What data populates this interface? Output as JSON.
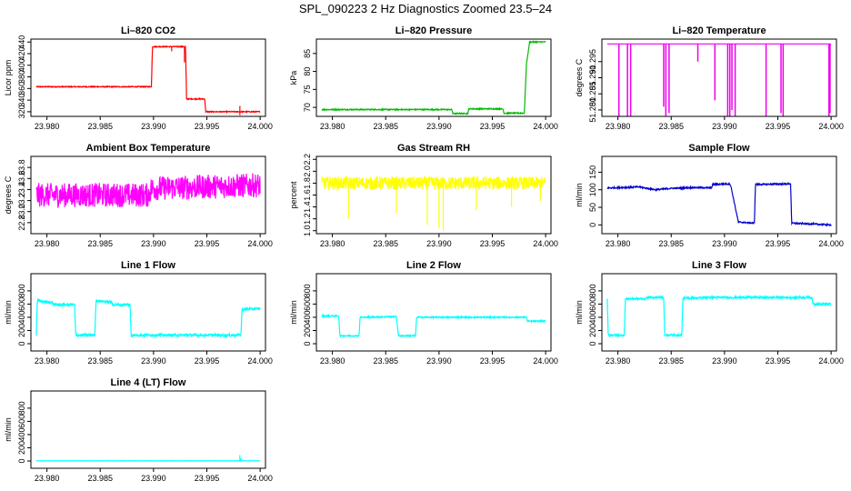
{
  "figure": {
    "title": "SPL_090223  2 Hz Diagnostics Zoomed 23.5–24"
  },
  "chart_data": [
    {
      "type": "line",
      "title": "Li–820 CO2",
      "xlabel": "",
      "ylabel": "Licor ppm",
      "xlim": [
        23.9785,
        24.0005
      ],
      "ylim": [
        312,
        445
      ],
      "xticks": [
        "23.980",
        "23.985",
        "23.990",
        "23.995",
        "24.000"
      ],
      "yticks": [
        "320",
        "340",
        "360",
        "380",
        "400",
        "420",
        "440"
      ],
      "color": "#ff0000",
      "noise": 0.8,
      "steps": [
        [
          23.979,
          363
        ],
        [
          23.9898,
          363
        ],
        [
          23.9899,
          432
        ],
        [
          23.993,
          432
        ],
        [
          23.9931,
          342
        ],
        [
          23.9948,
          342
        ],
        [
          23.9949,
          320
        ],
        [
          24.0,
          320
        ]
      ],
      "spikes": [
        [
          23.9917,
          424
        ],
        [
          23.9929,
          405
        ],
        [
          23.9981,
          330
        ],
        [
          23.9981,
          314
        ]
      ]
    },
    {
      "type": "line",
      "title": "Li–820 Pressure",
      "xlabel": "",
      "ylabel": "kPa",
      "xlim": [
        23.9785,
        24.0005
      ],
      "ylim": [
        67.5,
        89
      ],
      "xticks": [
        "23.980",
        "23.985",
        "23.990",
        "23.995",
        "24.000"
      ],
      "yticks": [
        "70",
        "75",
        "80",
        "85"
      ],
      "color": "#00bb00",
      "noise": 0.15,
      "steps": [
        [
          23.979,
          69.4
        ],
        [
          23.9912,
          69.4
        ],
        [
          23.9913,
          68.3
        ],
        [
          23.9927,
          68.3
        ],
        [
          23.9928,
          69.6
        ],
        [
          23.996,
          69.6
        ],
        [
          23.9961,
          68.4
        ],
        [
          23.998,
          68.4
        ],
        [
          23.9982,
          82
        ],
        [
          23.9985,
          88.2
        ],
        [
          24.0,
          88.2
        ]
      ],
      "spikes": []
    },
    {
      "type": "line",
      "title": "Li–820 Temperature",
      "xlabel": "",
      "ylabel": "degrees C",
      "xlim": [
        23.9785,
        24.0005
      ],
      "ylim": [
        51.278,
        51.302
      ],
      "xticks": [
        "23.980",
        "23.985",
        "23.990",
        "23.995",
        "24.000"
      ],
      "yticks": [
        "51.280",
        "51.285",
        "51.290",
        "51.295"
      ],
      "color": "#ee00ee",
      "noise": 0,
      "steps": [
        [
          23.979,
          51.3005
        ],
        [
          24.0,
          51.3005
        ]
      ],
      "drops": [
        [
          23.9801,
          51.278
        ],
        [
          23.9809,
          51.278
        ],
        [
          23.9812,
          51.278
        ],
        [
          23.9843,
          51.281
        ],
        [
          23.9845,
          51.278
        ],
        [
          23.9848,
          51.279
        ],
        [
          23.9875,
          51.295
        ],
        [
          23.9891,
          51.283
        ],
        [
          23.9903,
          51.278
        ],
        [
          23.9905,
          51.278
        ],
        [
          23.9907,
          51.28
        ],
        [
          23.991,
          51.278
        ],
        [
          23.9939,
          51.278
        ],
        [
          23.9953,
          51.279
        ],
        [
          23.9955,
          51.278
        ],
        [
          23.9998,
          51.278
        ],
        [
          23.9999,
          51.279
        ]
      ]
    },
    {
      "type": "line",
      "title": "Ambient Box Temperature",
      "xlabel": "",
      "ylabel": "degrees C",
      "xlim": [
        23.9785,
        24.0005
      ],
      "ylim": [
        22.6,
        24.0
      ],
      "xticks": [
        "23.980",
        "23.985",
        "23.990",
        "23.995",
        "24.000"
      ],
      "yticks": [
        "22.8",
        "23.0",
        "23.2",
        "23.4",
        "23.6",
        "23.8"
      ],
      "color": "#ff00ff",
      "noise": 0.22,
      "steps": [
        [
          23.979,
          23.3
        ],
        [
          23.9895,
          23.3
        ],
        [
          23.9898,
          23.42
        ],
        [
          24.0,
          23.48
        ]
      ],
      "spikes": []
    },
    {
      "type": "line",
      "title": "Gas Stream RH",
      "xlabel": "",
      "ylabel": "percent",
      "xlim": [
        23.9785,
        24.0005
      ],
      "ylim": [
        0.95,
        2.25
      ],
      "xticks": [
        "23.980",
        "23.985",
        "23.990",
        "23.995",
        "24.000"
      ],
      "yticks": [
        "1.0",
        "1.2",
        "1.4",
        "1.6",
        "1.8",
        "2.0",
        "2.2"
      ],
      "color": "#ffff00",
      "noise": 0.11,
      "steps": [
        [
          23.979,
          1.8
        ],
        [
          24.0,
          1.8
        ]
      ],
      "spikes": [
        [
          23.9815,
          1.2
        ],
        [
          23.9889,
          1.1
        ],
        [
          23.99,
          1.05
        ],
        [
          23.9904,
          1.0
        ],
        [
          23.986,
          1.3
        ],
        [
          23.9935,
          1.35
        ],
        [
          23.9968,
          1.4
        ],
        [
          23.9995,
          1.5
        ]
      ]
    },
    {
      "type": "line",
      "title": "Sample Flow",
      "xlabel": "",
      "ylabel": "ml/min",
      "xlim": [
        23.9785,
        24.0005
      ],
      "ylim": [
        -25,
        195
      ],
      "xticks": [
        "23.980",
        "23.985",
        "23.990",
        "23.995",
        "24.000"
      ],
      "yticks": [
        "0",
        "50",
        "100",
        "150"
      ],
      "color": "#0000cc",
      "noise": 2,
      "steps": [
        [
          23.979,
          105
        ],
        [
          23.982,
          108
        ],
        [
          23.9835,
          100
        ],
        [
          23.985,
          104
        ],
        [
          23.987,
          106
        ],
        [
          23.9888,
          106
        ],
        [
          23.9889,
          115
        ],
        [
          23.9905,
          117
        ],
        [
          23.9906,
          110
        ],
        [
          23.9913,
          8
        ],
        [
          23.9928,
          5
        ],
        [
          23.9929,
          115
        ],
        [
          23.9962,
          117
        ],
        [
          23.9963,
          5
        ],
        [
          24.0,
          0
        ]
      ],
      "spikes": []
    },
    {
      "type": "line",
      "title": "Line 1 Flow",
      "xlabel": "",
      "ylabel": "ml/min",
      "xlim": [
        23.9785,
        24.0005
      ],
      "ylim": [
        -110,
        1060
      ],
      "xticks": [
        "23.980",
        "23.985",
        "23.990",
        "23.995",
        "24.000"
      ],
      "yticks": [
        "0",
        "200",
        "400",
        "600",
        "800"
      ],
      "color": "#00ffff",
      "noise": 20,
      "steps": [
        [
          23.979,
          130
        ],
        [
          23.9791,
          650
        ],
        [
          23.9805,
          620
        ],
        [
          23.9807,
          590
        ],
        [
          23.9826,
          590
        ],
        [
          23.9827,
          130
        ],
        [
          23.9845,
          130
        ],
        [
          23.9846,
          650
        ],
        [
          23.986,
          630
        ],
        [
          23.9862,
          590
        ],
        [
          23.9878,
          590
        ],
        [
          23.9879,
          130
        ],
        [
          23.9982,
          130
        ],
        [
          23.9983,
          520
        ],
        [
          24.0,
          530
        ]
      ],
      "spikes": []
    },
    {
      "type": "line",
      "title": "Line 2 Flow",
      "xlabel": "",
      "ylabel": "ml/min",
      "xlim": [
        23.9785,
        24.0005
      ],
      "ylim": [
        -110,
        1060
      ],
      "xticks": [
        "23.980",
        "23.985",
        "23.990",
        "23.995",
        "24.000"
      ],
      "yticks": [
        "0",
        "200",
        "400",
        "600",
        "800"
      ],
      "color": "#00ffff",
      "noise": 10,
      "steps": [
        [
          23.979,
          420
        ],
        [
          23.9806,
          420
        ],
        [
          23.9807,
          120
        ],
        [
          23.9825,
          120
        ],
        [
          23.9826,
          400
        ],
        [
          23.986,
          410
        ],
        [
          23.9862,
          120
        ],
        [
          23.9878,
          120
        ],
        [
          23.9879,
          400
        ],
        [
          23.9982,
          400
        ],
        [
          23.9983,
          340
        ],
        [
          24.0,
          340
        ]
      ],
      "spikes": []
    },
    {
      "type": "line",
      "title": "Line 3 Flow",
      "xlabel": "",
      "ylabel": "ml/min",
      "xlim": [
        23.9785,
        24.0005
      ],
      "ylim": [
        -110,
        1060
      ],
      "xticks": [
        "23.980",
        "23.985",
        "23.990",
        "23.995",
        "24.000"
      ],
      "yticks": [
        "0",
        "200",
        "400",
        "600",
        "800"
      ],
      "color": "#00ffff",
      "noise": 15,
      "steps": [
        [
          23.979,
          680
        ],
        [
          23.9791,
          130
        ],
        [
          23.9806,
          130
        ],
        [
          23.9807,
          680
        ],
        [
          23.9826,
          680
        ],
        [
          23.9827,
          700
        ],
        [
          23.9843,
          700
        ],
        [
          23.9844,
          130
        ],
        [
          23.986,
          130
        ],
        [
          23.9861,
          690
        ],
        [
          23.9875,
          690
        ],
        [
          23.988,
          700
        ],
        [
          23.9982,
          700
        ],
        [
          23.9983,
          600
        ],
        [
          24.0,
          600
        ]
      ],
      "spikes": []
    },
    {
      "type": "line",
      "title": "Line 4 (LT) Flow",
      "xlabel": "",
      "ylabel": "ml/min",
      "xlim": [
        23.9785,
        24.0005
      ],
      "ylim": [
        -110,
        1060
      ],
      "xticks": [
        "23.980",
        "23.985",
        "23.990",
        "23.995",
        "24.000"
      ],
      "yticks": [
        "0",
        "200",
        "400",
        "600",
        "800"
      ],
      "color": "#00ffff",
      "noise": 2,
      "steps": [
        [
          23.979,
          3
        ],
        [
          24.0,
          3
        ]
      ],
      "spikes": [
        [
          23.9981,
          90
        ],
        [
          23.9982,
          40
        ]
      ]
    }
  ]
}
